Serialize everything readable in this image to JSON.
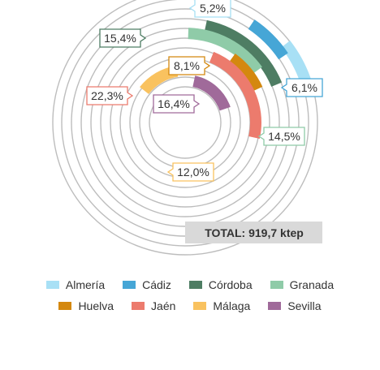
{
  "chart_data": {
    "type": "radial-bar",
    "total_label": "TOTAL: 919,7 ktep",
    "series": [
      {
        "name": "Almería",
        "value": 5.2,
        "label": "5,2%",
        "color": "#a8e0f5"
      },
      {
        "name": "Cádiz",
        "value": 6.1,
        "label": "6,1%",
        "color": "#46a6d6"
      },
      {
        "name": "Córdoba",
        "value": 15.4,
        "label": "15,4%",
        "color": "#4e7d63"
      },
      {
        "name": "Granada",
        "value": 14.5,
        "label": "14,5%",
        "color": "#8fcba8"
      },
      {
        "name": "Huelva",
        "value": 8.1,
        "label": "8,1%",
        "color": "#d4880f"
      },
      {
        "name": "Jaén",
        "value": 22.3,
        "label": "22,3%",
        "color": "#ec7b6d"
      },
      {
        "name": "Málaga",
        "value": 12.0,
        "label": "12,0%",
        "color": "#f9c25f"
      },
      {
        "name": "Sevilla",
        "value": 16.4,
        "label": "16,4%",
        "color": "#a06a9a"
      }
    ]
  },
  "legend": {
    "row1": [
      "Almería",
      "Cádiz",
      "Córdoba",
      "Granada"
    ],
    "row2": [
      "Huelva",
      "Jaén",
      "Málaga",
      "Sevilla"
    ]
  }
}
